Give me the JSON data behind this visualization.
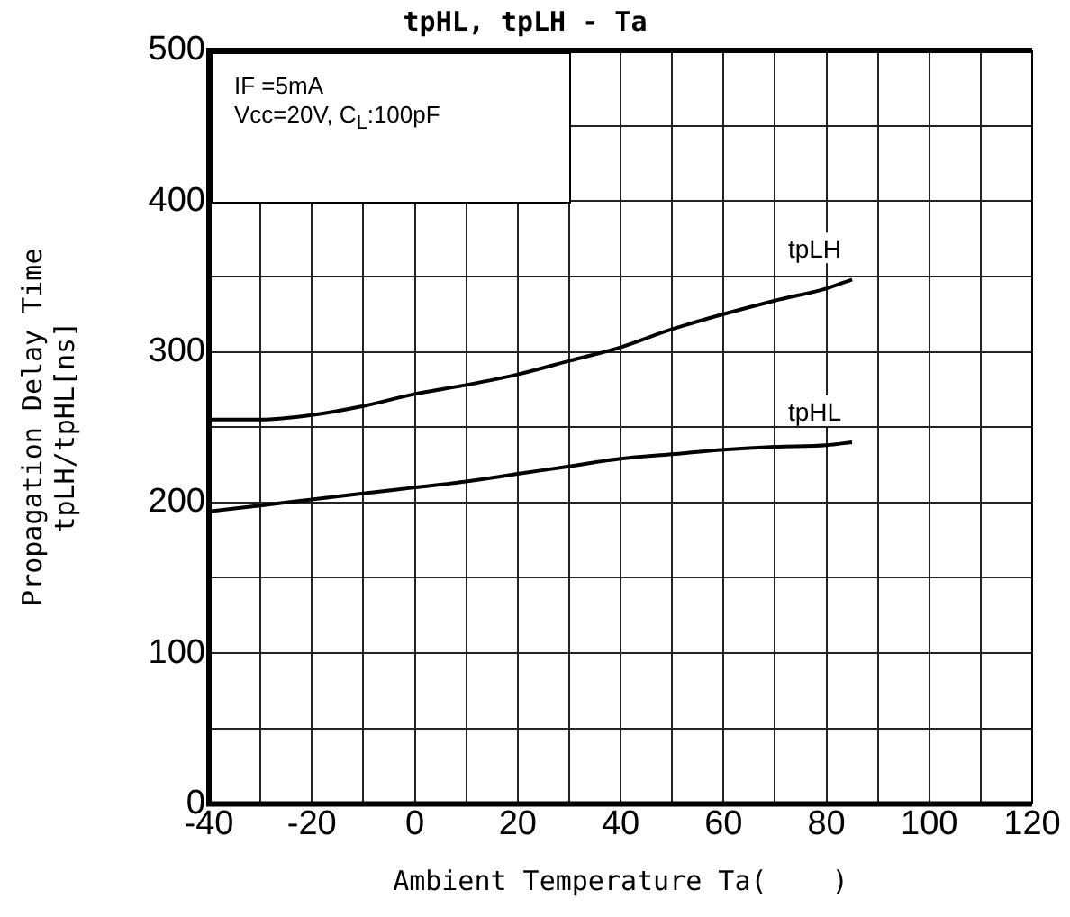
{
  "chart_data": {
    "type": "line",
    "title": "tpHL, tpLH - Ta",
    "xlabel": "Ambient Temperature Ta(    )",
    "ylabel": "Propagation Delay Time\ntpLH/tpHL[ns]",
    "annotations": [
      "IF =5mA\nVcc=20V, C$_{L}$:100pF"
    ],
    "x": [
      -40,
      -30,
      -20,
      -10,
      0,
      10,
      20,
      30,
      40,
      50,
      60,
      70,
      80,
      85
    ],
    "series": [
      {
        "name": "tpLH",
        "color": "#000000",
        "values": [
          255,
          255,
          258,
          264,
          272,
          278,
          285,
          294,
          303,
          315,
          325,
          334,
          342,
          348
        ]
      },
      {
        "name": "tpHL",
        "color": "#000000",
        "values": [
          194,
          198,
          202,
          206,
          210,
          214,
          219,
          224,
          229,
          232,
          235,
          237,
          238,
          240
        ]
      }
    ],
    "xlim": [
      -40,
      120
    ],
    "xticks": [
      -40,
      {
        "value": -30,
        "label": null
      },
      -20,
      {
        "value": -10,
        "label": null
      },
      0,
      {
        "value": 10,
        "label": null
      },
      20,
      {
        "value": 30,
        "label": null
      },
      40,
      {
        "value": 50,
        "label": null
      },
      60,
      {
        "value": 70,
        "label": null
      },
      80,
      {
        "value": 90,
        "label": null
      },
      100,
      {
        "value": 110,
        "label": null
      },
      120
    ],
    "ylim": [
      0,
      500
    ],
    "yticks": [
      0,
      {
        "value": 50,
        "label": null
      },
      100,
      {
        "value": 150,
        "label": null
      },
      200,
      {
        "value": 250,
        "label": null
      },
      300,
      {
        "value": 350,
        "label": null
      },
      400,
      {
        "value": 450,
        "label": null
      },
      500
    ],
    "grid": true,
    "legend": false,
    "marker": "none",
    "line_style": "solid"
  }
}
